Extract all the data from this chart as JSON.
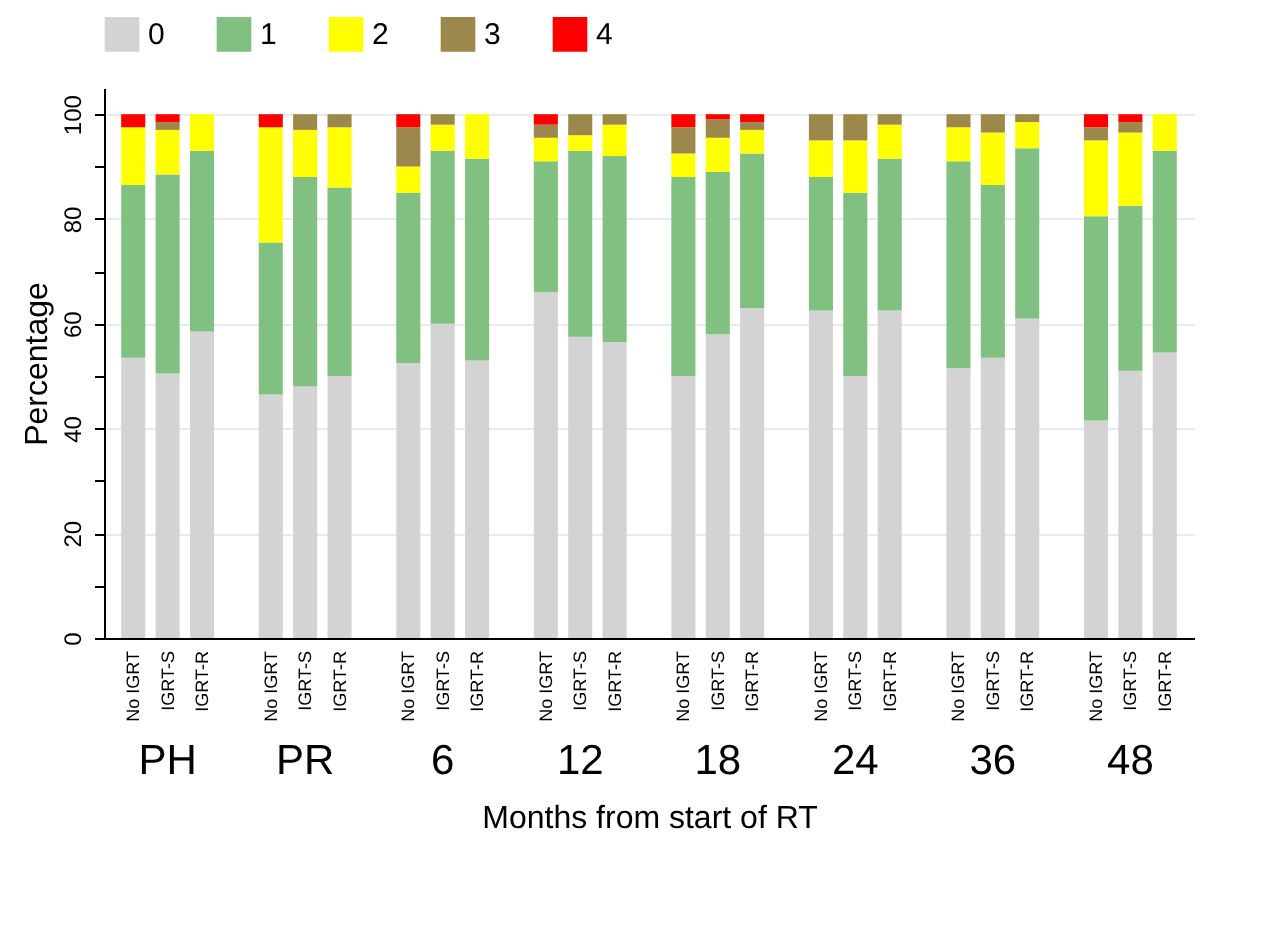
{
  "chart_data": {
    "type": "bar",
    "stacked": true,
    "xlabel": "Months from start of RT",
    "ylabel": "Percentage",
    "categories": [
      "No IGRT",
      "IGRT-S",
      "IGRT-R",
      "No IGRT",
      "IGRT-S",
      "IGRT-R",
      "No IGRT",
      "IGRT-S",
      "IGRT-R",
      "No IGRT",
      "IGRT-S",
      "IGRT-R",
      "No IGRT",
      "IGRT-S",
      "IGRT-R",
      "No IGRT",
      "IGRT-S",
      "IGRT-R",
      "No IGRT",
      "IGRT-S",
      "IGRT-R",
      "No IGRT",
      "IGRT-S",
      "IGRT-R"
    ],
    "annotations": [
      "PH",
      "PR",
      "6",
      "12",
      "18",
      "24",
      "36",
      "48"
    ],
    "series": [
      {
        "name": "0",
        "color": "#d3d3d3",
        "values": [
          53.5,
          50.5,
          58.5,
          46.5,
          48,
          50,
          52.5,
          60,
          53,
          66,
          57.5,
          56.5,
          50,
          58,
          63,
          62.5,
          50,
          62.5,
          51.5,
          53.5,
          61,
          41.5,
          51,
          54.5
        ]
      },
      {
        "name": "1",
        "color": "#80c080",
        "values": [
          33,
          38,
          34.5,
          29,
          40,
          36,
          32.5,
          33,
          38.5,
          25,
          35.5,
          35.5,
          38,
          31,
          29.5,
          25.5,
          35,
          29,
          39.5,
          33,
          32.5,
          39,
          31.5,
          38.5
        ]
      },
      {
        "name": "2",
        "color": "#ffff00",
        "values": [
          11,
          8.5,
          7,
          22,
          9,
          11.5,
          5,
          5,
          8.5,
          4.5,
          3,
          6,
          4.5,
          6.5,
          4.5,
          7,
          10,
          6.5,
          6.5,
          10,
          5,
          14.5,
          14,
          7
        ]
      },
      {
        "name": "3",
        "color": "#9c884a",
        "values": [
          0,
          1.5,
          0,
          0,
          3,
          2.5,
          7.5,
          2,
          0,
          2.5,
          4,
          2,
          5,
          3.5,
          1.5,
          5,
          5,
          2,
          2.5,
          3.5,
          1.5,
          2.5,
          2,
          0
        ]
      },
      {
        "name": "4",
        "color": "#ff0000",
        "values": [
          2.5,
          1.5,
          0,
          2.5,
          0,
          0,
          2.5,
          0,
          0,
          2,
          0,
          0,
          2.5,
          1,
          1.5,
          0,
          0,
          0,
          0,
          0,
          0,
          2.5,
          1.5,
          0
        ]
      }
    ],
    "ylim": [
      0,
      105
    ],
    "yticks": [
      0,
      {
        "value": 10,
        "label": null
      },
      20,
      {
        "value": 30,
        "label": null
      },
      40,
      {
        "value": 50,
        "label": null
      },
      60,
      {
        "value": 70,
        "label": null
      },
      80,
      {
        "value": 90,
        "label": null
      },
      100
    ],
    "grid": "y",
    "legend": "top"
  }
}
